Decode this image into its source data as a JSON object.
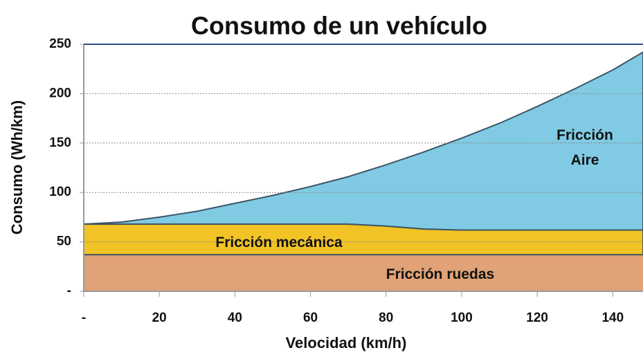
{
  "chart_data": {
    "type": "stacked_area",
    "title": "Consumo de un vehículo",
    "x_label": "Velocidad (km/h)",
    "y_label": "Consumo (Wh/km)",
    "x": [
      0,
      10,
      20,
      30,
      40,
      50,
      60,
      70,
      80,
      90,
      100,
      110,
      120,
      130,
      140,
      148
    ],
    "series": [
      {
        "name": "Fricción ruedas",
        "color": "#e0a276",
        "values": [
          37,
          37,
          37,
          37,
          37,
          37,
          37,
          37,
          37,
          37,
          37,
          37,
          37,
          37,
          37,
          37
        ]
      },
      {
        "name": "Fricción mecánica",
        "color": "#f2c324",
        "values": [
          31,
          31,
          31,
          31,
          31,
          31,
          31,
          31,
          29,
          26,
          25,
          25,
          25,
          25,
          25,
          25
        ]
      },
      {
        "name": "Fricción Aire",
        "color": "#80cbe3",
        "values": [
          0,
          2,
          7,
          13,
          21,
          29,
          38,
          48,
          62,
          78,
          93,
          108,
          125,
          143,
          162,
          180
        ]
      }
    ],
    "xlim": [
      0,
      148
    ],
    "ylim": [
      0,
      250
    ],
    "xticks": [
      {
        "value": 0,
        "label": "-"
      },
      20,
      40,
      60,
      80,
      100,
      120,
      140
    ],
    "yticks": [
      {
        "value": 0,
        "label": "-"
      },
      50,
      100,
      150,
      200,
      250
    ],
    "grid": true
  }
}
